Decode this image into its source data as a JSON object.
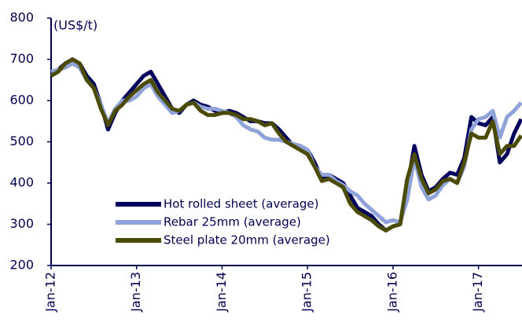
{
  "chart_data": {
    "type": "line",
    "y_label": "(US$/t)",
    "categories": [
      "Jan-12",
      null,
      null,
      null,
      null,
      null,
      null,
      null,
      null,
      null,
      null,
      null,
      "Jan-13",
      null,
      null,
      null,
      null,
      null,
      null,
      null,
      null,
      null,
      null,
      null,
      "Jan-14",
      null,
      null,
      null,
      null,
      null,
      null,
      null,
      null,
      null,
      null,
      null,
      "Jan-15",
      null,
      null,
      null,
      null,
      null,
      null,
      null,
      null,
      null,
      null,
      null,
      "Jan-16",
      null,
      null,
      null,
      null,
      null,
      null,
      null,
      null,
      null,
      null,
      null,
      "Jan-17",
      null,
      null,
      null,
      null,
      null,
      null
    ],
    "series": [
      {
        "name": "Hot rolled sheet (average)",
        "color": "#00005c",
        "values": [
          665,
          675,
          690,
          700,
          690,
          660,
          640,
          590,
          530,
          570,
          600,
          620,
          640,
          660,
          670,
          640,
          610,
          580,
          570,
          590,
          600,
          590,
          585,
          575,
          570,
          575,
          570,
          560,
          550,
          550,
          545,
          545,
          530,
          510,
          490,
          490,
          480,
          450,
          410,
          420,
          410,
          400,
          370,
          340,
          330,
          320,
          300,
          285,
          295,
          300,
          390,
          490,
          420,
          380,
          390,
          410,
          425,
          420,
          460,
          560,
          545,
          540,
          560,
          450,
          470,
          520,
          555
        ]
      },
      {
        "name": "Rebar 25mm (average)",
        "color": "#8fa3d8",
        "values": [
          670,
          675,
          680,
          690,
          680,
          650,
          630,
          590,
          545,
          580,
          600,
          600,
          610,
          630,
          640,
          610,
          590,
          570,
          575,
          590,
          595,
          585,
          580,
          580,
          575,
          570,
          560,
          540,
          530,
          525,
          510,
          505,
          505,
          500,
          495,
          490,
          480,
          440,
          420,
          420,
          405,
          395,
          380,
          370,
          350,
          335,
          320,
          305,
          310,
          305,
          360,
          460,
          390,
          360,
          370,
          395,
          410,
          400,
          440,
          530,
          555,
          560,
          575,
          510,
          560,
          575,
          595
        ]
      },
      {
        "name": "Steel plate 20mm (average)",
        "color": "#4b4b00",
        "values": [
          660,
          670,
          690,
          700,
          690,
          650,
          630,
          580,
          540,
          575,
          590,
          610,
          625,
          640,
          650,
          620,
          600,
          580,
          575,
          590,
          595,
          575,
          565,
          565,
          570,
          570,
          565,
          555,
          555,
          550,
          540,
          545,
          520,
          500,
          490,
          480,
          470,
          440,
          405,
          410,
          400,
          390,
          350,
          330,
          320,
          310,
          295,
          285,
          295,
          300,
          410,
          470,
          410,
          375,
          385,
          405,
          410,
          400,
          450,
          520,
          510,
          510,
          550,
          470,
          490,
          490,
          515
        ]
      }
    ],
    "ylim": [
      200,
      800
    ],
    "yticks": [
      200,
      300,
      400,
      500,
      600,
      700,
      800
    ]
  }
}
